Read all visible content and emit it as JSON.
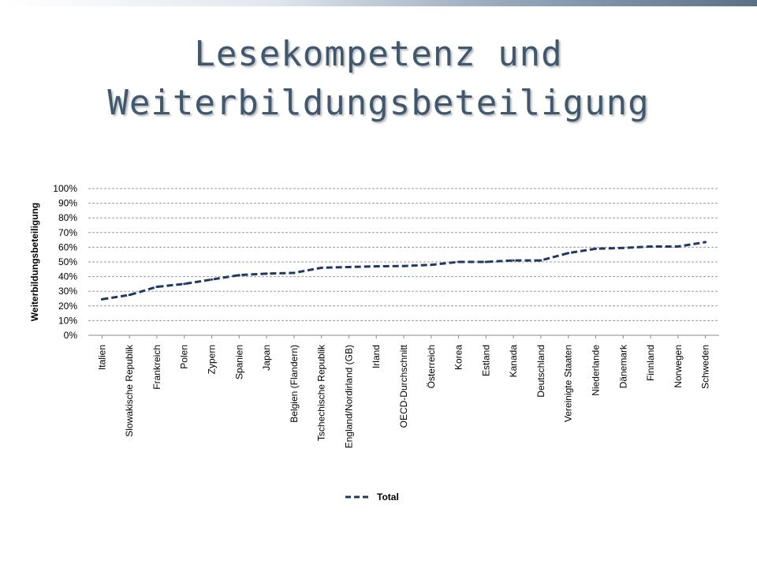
{
  "slide": {
    "title_line1": "Lesekompetenz und",
    "title_line2": "Weiterbildungsbeteiligung"
  },
  "chart_data": {
    "type": "line",
    "ylabel": "Weiterbildungsbeteiligung",
    "xlabel": "",
    "ylim": [
      0,
      100
    ],
    "y_ticks": [
      "0%",
      "10%",
      "20%",
      "30%",
      "40%",
      "50%",
      "60%",
      "70%",
      "80%",
      "90%",
      "100%"
    ],
    "grid": true,
    "legend": "bottom",
    "categories": [
      "Italien",
      "Slowakische Republik",
      "Frankreich",
      "Polen",
      "Zypern",
      "Spanien",
      "Japan",
      "Belgien (Flandern)",
      "Tschechische Republik",
      "England/Nordirland (GB)",
      "Irland",
      "OECD-Durchschnitt",
      "Österreich",
      "Korea",
      "Estland",
      "Kanada",
      "Deutschland",
      "Vereinigte Staaten",
      "Niederlande",
      "Dänemark",
      "Finnland",
      "Norwegen",
      "Schweden"
    ],
    "series": [
      {
        "name": "Total",
        "color": "#1f3864",
        "dash": "dashed",
        "values": [
          24.5,
          27.5,
          33,
          35,
          38,
          41,
          42,
          42.5,
          46,
          46.5,
          47,
          47.2,
          48,
          50,
          50,
          51,
          51,
          56,
          59,
          59.5,
          60.5,
          60.5,
          63.5
        ]
      }
    ]
  }
}
